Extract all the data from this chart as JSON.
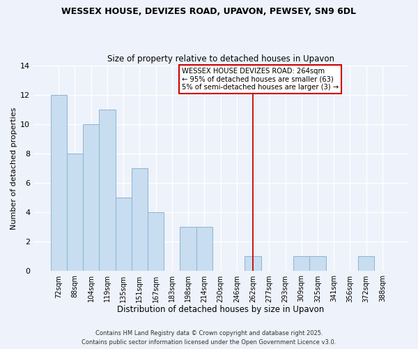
{
  "title": "WESSEX HOUSE, DEVIZES ROAD, UPAVON, PEWSEY, SN9 6DL",
  "subtitle": "Size of property relative to detached houses in Upavon",
  "xlabel": "Distribution of detached houses by size in Upavon",
  "ylabel": "Number of detached properties",
  "bar_labels": [
    "72sqm",
    "88sqm",
    "104sqm",
    "119sqm",
    "135sqm",
    "151sqm",
    "167sqm",
    "183sqm",
    "198sqm",
    "214sqm",
    "230sqm",
    "246sqm",
    "262sqm",
    "277sqm",
    "293sqm",
    "309sqm",
    "325sqm",
    "341sqm",
    "356sqm",
    "372sqm",
    "388sqm"
  ],
  "bar_values": [
    12,
    8,
    10,
    11,
    5,
    7,
    4,
    0,
    3,
    3,
    0,
    0,
    1,
    0,
    0,
    1,
    1,
    0,
    0,
    1,
    0
  ],
  "bar_color": "#c8ddf0",
  "bar_edge_color": "#8ab4d4",
  "vline_idx": 12,
  "vline_color": "#cc0000",
  "annotation_text": "WESSEX HOUSE DEVIZES ROAD: 264sqm\n← 95% of detached houses are smaller (63)\n5% of semi-detached houses are larger (3) →",
  "ylim": [
    0,
    14
  ],
  "background_color": "#eef2fa",
  "grid_color": "#ffffff",
  "footer1": "Contains HM Land Registry data © Crown copyright and database right 2025.",
  "footer2": "Contains public sector information licensed under the Open Government Licence v3.0."
}
